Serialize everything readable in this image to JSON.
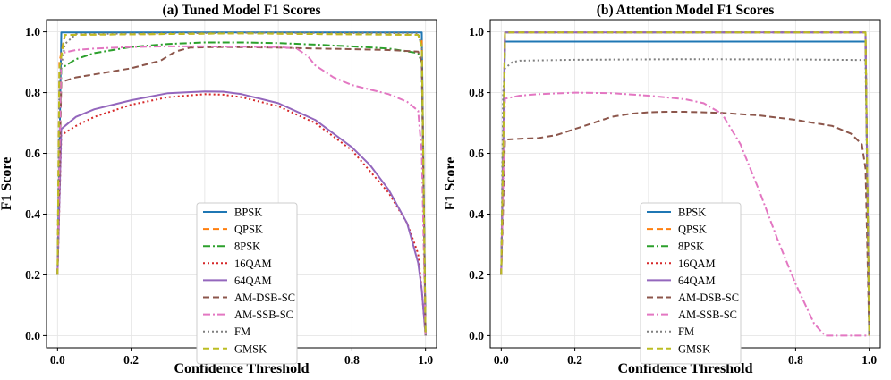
{
  "chart_data": [
    {
      "type": "line",
      "title": "(a) Tuned Model F1 Scores",
      "xlabel": "Confidence Threshold",
      "ylabel": "F1 Score",
      "xlim": [
        -0.03,
        1.03
      ],
      "ylim": [
        -0.04,
        1.04
      ],
      "xticks": [
        0.0,
        0.2,
        0.4,
        0.6,
        0.8,
        1.0
      ],
      "xtick_labels": [
        "0.0",
        "0.2",
        "0.4",
        "0.6",
        "0.8",
        "1.0"
      ],
      "yticks": [
        0.0,
        0.2,
        0.4,
        0.6,
        0.8,
        1.0
      ],
      "ytick_labels": [
        "0.0",
        "0.2",
        "0.4",
        "0.6",
        "0.8",
        "1.0"
      ],
      "grid": true,
      "legend_position": "lower-center",
      "series": [
        {
          "name": "BPSK",
          "color": "#1f77b4",
          "style": "solid",
          "x": [
            0.0,
            0.01,
            0.5,
            0.99,
            1.0
          ],
          "y": [
            0.2,
            0.998,
            0.998,
            0.998,
            0.0
          ]
        },
        {
          "name": "QPSK",
          "color": "#ff7f0e",
          "style": "dashed",
          "x": [
            0.0,
            0.005,
            0.02,
            0.5,
            0.98,
            0.99,
            1.0
          ],
          "y": [
            0.2,
            0.9,
            0.99,
            0.995,
            0.99,
            0.97,
            0.0
          ]
        },
        {
          "name": "8PSK",
          "color": "#2ca02c",
          "style": "dashdot",
          "x": [
            0.0,
            0.01,
            0.05,
            0.1,
            0.2,
            0.3,
            0.4,
            0.5,
            0.6,
            0.7,
            0.8,
            0.9,
            0.98,
            0.99,
            1.0
          ],
          "y": [
            0.2,
            0.88,
            0.91,
            0.93,
            0.95,
            0.96,
            0.965,
            0.965,
            0.963,
            0.958,
            0.952,
            0.945,
            0.93,
            0.9,
            0.0
          ]
        },
        {
          "name": "16QAM",
          "color": "#d62728",
          "style": "dotted",
          "x": [
            0.0,
            0.01,
            0.05,
            0.1,
            0.2,
            0.3,
            0.4,
            0.45,
            0.5,
            0.6,
            0.7,
            0.8,
            0.9,
            0.95,
            0.98,
            0.99,
            1.0
          ],
          "y": [
            0.2,
            0.66,
            0.69,
            0.72,
            0.76,
            0.785,
            0.795,
            0.793,
            0.785,
            0.755,
            0.7,
            0.61,
            0.47,
            0.37,
            0.27,
            0.15,
            0.0
          ]
        },
        {
          "name": "64QAM",
          "color": "#9467bd",
          "style": "solid",
          "x": [
            0.0,
            0.01,
            0.05,
            0.1,
            0.2,
            0.3,
            0.4,
            0.45,
            0.5,
            0.6,
            0.7,
            0.8,
            0.85,
            0.9,
            0.95,
            0.98,
            0.99,
            1.0
          ],
          "y": [
            0.2,
            0.68,
            0.72,
            0.745,
            0.775,
            0.798,
            0.804,
            0.803,
            0.795,
            0.765,
            0.71,
            0.62,
            0.56,
            0.48,
            0.37,
            0.24,
            0.15,
            0.0
          ]
        },
        {
          "name": "AM-DSB-SC",
          "color": "#8c564b",
          "style": "dashed",
          "x": [
            0.0,
            0.01,
            0.05,
            0.1,
            0.2,
            0.28,
            0.32,
            0.36,
            0.45,
            0.6,
            0.7,
            0.8,
            0.9,
            0.98,
            0.99,
            1.0
          ],
          "y": [
            0.2,
            0.835,
            0.85,
            0.86,
            0.88,
            0.905,
            0.935,
            0.948,
            0.95,
            0.948,
            0.945,
            0.943,
            0.94,
            0.935,
            0.9,
            0.0
          ]
        },
        {
          "name": "AM-SSB-SC",
          "color": "#e377c2",
          "style": "dashdot",
          "x": [
            0.0,
            0.01,
            0.05,
            0.1,
            0.2,
            0.3,
            0.4,
            0.5,
            0.6,
            0.65,
            0.68,
            0.7,
            0.75,
            0.8,
            0.9,
            0.95,
            0.98,
            0.99,
            1.0
          ],
          "y": [
            0.2,
            0.93,
            0.94,
            0.945,
            0.95,
            0.952,
            0.952,
            0.951,
            0.95,
            0.945,
            0.92,
            0.89,
            0.85,
            0.825,
            0.795,
            0.77,
            0.74,
            0.6,
            0.0
          ]
        },
        {
          "name": "FM",
          "color": "#7f7f7f",
          "style": "dotted",
          "x": [
            0.0,
            0.005,
            0.02,
            0.05,
            0.5,
            0.98,
            0.99,
            1.0
          ],
          "y": [
            0.2,
            0.85,
            0.96,
            0.993,
            0.997,
            0.996,
            0.95,
            0.0
          ]
        },
        {
          "name": "GMSK",
          "color": "#bcbd22",
          "style": "dashed",
          "x": [
            0.0,
            0.005,
            0.02,
            0.5,
            0.98,
            0.99,
            1.0
          ],
          "y": [
            0.2,
            0.88,
            0.99,
            0.995,
            0.99,
            0.95,
            0.0
          ]
        }
      ]
    },
    {
      "type": "line",
      "title": "(b) Attention Model F1 Scores",
      "xlabel": "Confidence Threshold",
      "ylabel": "F1 Score",
      "xlim": [
        -0.03,
        1.03
      ],
      "ylim": [
        -0.04,
        1.04
      ],
      "xticks": [
        0.0,
        0.2,
        0.4,
        0.6,
        0.8,
        1.0
      ],
      "xtick_labels": [
        "0.0",
        "0.2",
        "0.4",
        "0.6",
        "0.8",
        "1.0"
      ],
      "yticks": [
        0.0,
        0.2,
        0.4,
        0.6,
        0.8,
        1.0
      ],
      "ytick_labels": [
        "0.0",
        "0.2",
        "0.4",
        "0.6",
        "0.8",
        "1.0"
      ],
      "grid": true,
      "legend_position": "lower-center",
      "series": [
        {
          "name": "BPSK",
          "color": "#1f77b4",
          "style": "solid",
          "x": [
            0.0,
            0.01,
            0.5,
            0.99,
            1.0
          ],
          "y": [
            0.2,
            0.968,
            0.968,
            0.968,
            0.0
          ]
        },
        {
          "name": "QPSK",
          "color": "#ff7f0e",
          "style": "dashed",
          "x": [
            0.0,
            0.01,
            0.5,
            0.99,
            1.0
          ],
          "y": [
            0.2,
            0.998,
            0.998,
            0.998,
            0.0
          ]
        },
        {
          "name": "8PSK",
          "color": "#2ca02c",
          "style": "dashdot",
          "x": [
            0.0,
            0.01,
            0.5,
            0.99,
            1.0
          ],
          "y": [
            0.2,
            0.998,
            0.998,
            0.998,
            0.0
          ]
        },
        {
          "name": "16QAM",
          "color": "#d62728",
          "style": "dotted",
          "x": [
            0.0,
            0.01,
            0.5,
            0.99,
            1.0
          ],
          "y": [
            0.2,
            0.998,
            0.998,
            0.998,
            0.0
          ]
        },
        {
          "name": "64QAM",
          "color": "#9467bd",
          "style": "solid",
          "x": [
            0.0,
            0.01,
            0.5,
            0.99,
            1.0
          ],
          "y": [
            0.2,
            0.998,
            0.998,
            0.998,
            0.0
          ]
        },
        {
          "name": "AM-DSB-SC",
          "color": "#8c564b",
          "style": "dashed",
          "x": [
            0.0,
            0.01,
            0.05,
            0.1,
            0.15,
            0.2,
            0.25,
            0.3,
            0.35,
            0.4,
            0.45,
            0.5,
            0.6,
            0.7,
            0.8,
            0.9,
            0.95,
            0.98,
            0.99,
            1.0
          ],
          "y": [
            0.2,
            0.645,
            0.648,
            0.65,
            0.66,
            0.68,
            0.7,
            0.72,
            0.73,
            0.735,
            0.737,
            0.737,
            0.733,
            0.725,
            0.71,
            0.69,
            0.665,
            0.63,
            0.55,
            0.0
          ]
        },
        {
          "name": "AM-SSB-SC",
          "color": "#e377c2",
          "style": "dashdot",
          "x": [
            0.0,
            0.01,
            0.05,
            0.1,
            0.2,
            0.3,
            0.4,
            0.5,
            0.55,
            0.6,
            0.65,
            0.7,
            0.75,
            0.8,
            0.85,
            0.88,
            0.9,
            0.95,
            0.99,
            1.0
          ],
          "y": [
            0.2,
            0.78,
            0.79,
            0.795,
            0.8,
            0.798,
            0.79,
            0.778,
            0.765,
            0.73,
            0.63,
            0.48,
            0.32,
            0.17,
            0.04,
            0.0,
            0.0,
            0.0,
            0.0,
            0.0
          ]
        },
        {
          "name": "FM",
          "color": "#7f7f7f",
          "style": "dotted",
          "x": [
            0.0,
            0.005,
            0.01,
            0.03,
            0.05,
            0.2,
            0.5,
            0.8,
            0.99,
            1.0
          ],
          "y": [
            0.2,
            0.8,
            0.88,
            0.9,
            0.905,
            0.908,
            0.91,
            0.909,
            0.907,
            0.0
          ]
        },
        {
          "name": "GMSK",
          "color": "#bcbd22",
          "style": "dashed",
          "x": [
            0.0,
            0.01,
            0.5,
            0.99,
            1.0
          ],
          "y": [
            0.2,
            0.998,
            0.998,
            0.998,
            0.0
          ]
        }
      ]
    }
  ]
}
